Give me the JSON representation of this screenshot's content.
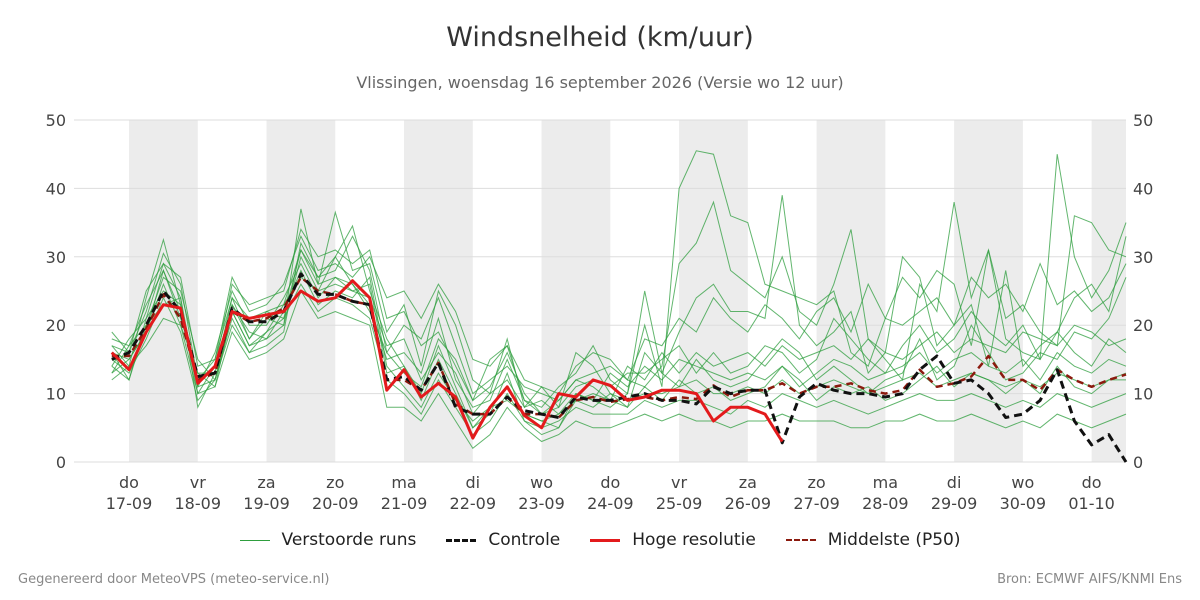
{
  "title": "Windsnelheid (km/uur)",
  "subtitle": "Vlissingen, woensdag 16 september 2026 (Versie wo 12 uur)",
  "footer_left": "Gegenereerd door MeteoVPS (meteo-service.nl)",
  "footer_right": "Bron: ECMWF AIFS/KNMI Ens",
  "colors": {
    "ensemble": "#2e9e3e",
    "control": "#111111",
    "high_res": "#e31a1c",
    "median": "#8b1a0e",
    "weekend_band": "#ececec",
    "grid": "#dddddd"
  },
  "legend": [
    {
      "label": "Verstoorde runs",
      "style": "ensemble"
    },
    {
      "label": "Controle",
      "style": "control"
    },
    {
      "label": "Hoge resolutie",
      "style": "high_res"
    },
    {
      "label": "Middelste (P50)",
      "style": "median"
    }
  ],
  "chart_data": {
    "type": "line",
    "title": "Windsnelheid (km/uur)",
    "ylim": [
      0,
      50
    ],
    "yticks": [
      0,
      10,
      20,
      30,
      40,
      50
    ],
    "x_unit": "days since 17-09 00:00",
    "xlim": [
      -0.8,
      14.5
    ],
    "grid": true,
    "legend_position": "bottom",
    "day_ticks": [
      {
        "x": 0,
        "day": "do",
        "date": "17-09"
      },
      {
        "x": 1,
        "day": "vr",
        "date": "18-09"
      },
      {
        "x": 2,
        "day": "za",
        "date": "19-09"
      },
      {
        "x": 3,
        "day": "zo",
        "date": "20-09"
      },
      {
        "x": 4,
        "day": "ma",
        "date": "21-09"
      },
      {
        "x": 5,
        "day": "di",
        "date": "22-09"
      },
      {
        "x": 6,
        "day": "wo",
        "date": "23-09"
      },
      {
        "x": 7,
        "day": "do",
        "date": "24-09"
      },
      {
        "x": 8,
        "day": "vr",
        "date": "25-09"
      },
      {
        "x": 9,
        "day": "za",
        "date": "26-09"
      },
      {
        "x": 10,
        "day": "zo",
        "date": "27-09"
      },
      {
        "x": 11,
        "day": "ma",
        "date": "28-09"
      },
      {
        "x": 12,
        "day": "di",
        "date": "29-09"
      },
      {
        "x": 13,
        "day": "wo",
        "date": "30-09"
      },
      {
        "x": 14,
        "day": "do",
        "date": "01-10"
      }
    ],
    "shaded_bands": [
      [
        0,
        1
      ],
      [
        2,
        3
      ],
      [
        4,
        5
      ],
      [
        6,
        7
      ],
      [
        8,
        9
      ],
      [
        10,
        11
      ],
      [
        12,
        13
      ],
      [
        14,
        14.5
      ]
    ],
    "series": [
      {
        "name": "Hoge resolutie",
        "style": "high_res",
        "x": [
          -0.25,
          -0.0,
          0.25,
          0.5,
          0.75,
          1.0,
          1.25,
          1.5,
          1.75,
          2.0,
          2.25,
          2.5,
          2.75,
          3.0,
          3.25,
          3.5,
          3.75,
          4.0,
          4.25,
          4.5,
          4.75,
          5.0,
          5.25,
          5.5,
          5.75,
          6.0,
          6.25,
          6.5,
          6.75,
          7.0,
          7.25,
          7.5,
          7.75,
          8.0,
          8.25,
          8.5,
          8.75,
          9.0,
          9.25,
          9.5
        ],
        "y": [
          16,
          13.5,
          19,
          23,
          22.5,
          11.5,
          14,
          22,
          21,
          21.5,
          22,
          25,
          23.5,
          24,
          26.5,
          24,
          10.5,
          13.5,
          9.5,
          11.5,
          9.5,
          3.5,
          8,
          11,
          6.8,
          5,
          10,
          9.5,
          12,
          11.2,
          9,
          9.5,
          10.5,
          10.5,
          10,
          6,
          8,
          8,
          7,
          3
        ]
      },
      {
        "name": "Controle",
        "style": "control",
        "x": [
          -0.25,
          -0.0,
          0.25,
          0.5,
          0.75,
          1.0,
          1.25,
          1.5,
          1.75,
          2.0,
          2.25,
          2.5,
          2.75,
          3.0,
          3.25,
          3.5,
          3.75,
          4.0,
          4.25,
          4.5,
          4.75,
          5.0,
          5.25,
          5.5,
          5.75,
          6.0,
          6.25,
          6.5,
          6.75,
          7.0,
          7.25,
          7.5,
          7.75,
          8.0,
          8.25,
          8.5,
          8.75,
          9.0,
          9.25,
          9.5,
          9.75,
          10.0,
          10.25,
          10.5,
          10.75,
          11.0,
          11.25,
          11.5,
          11.75,
          12.0,
          12.25,
          12.5,
          12.75,
          13.0,
          13.25,
          13.5,
          13.75,
          14.0,
          14.25,
          14.5
        ],
        "y": [
          15,
          16,
          20,
          25,
          22,
          12.5,
          13,
          22.5,
          20.5,
          20.5,
          22,
          27.5,
          24.5,
          24.5,
          23.5,
          23,
          12,
          12.5,
          10.5,
          14.5,
          8,
          7,
          7,
          9.5,
          7.5,
          7,
          6.5,
          9.5,
          9,
          9,
          9.5,
          10,
          9,
          9,
          8.5,
          11,
          10,
          10.5,
          10.5,
          2.8,
          9.5,
          11.5,
          10.5,
          10,
          10,
          9.5,
          10,
          13.5,
          15.5,
          11.5,
          12,
          10,
          6.5,
          7,
          9,
          13.5,
          6,
          2.5,
          4,
          0
        ]
      },
      {
        "name": "Middelste (P50)",
        "style": "median",
        "x": [
          -0.25,
          -0.0,
          0.25,
          0.5,
          0.75,
          1.0,
          1.25,
          1.5,
          1.75,
          2.0,
          2.25,
          2.5,
          2.75,
          3.0,
          3.25,
          3.5,
          3.75,
          4.0,
          4.25,
          4.5,
          4.75,
          5.0,
          5.25,
          5.5,
          5.75,
          6.0,
          6.25,
          6.5,
          6.75,
          7.0,
          7.25,
          7.5,
          7.75,
          8.0,
          8.25,
          8.5,
          8.75,
          9.0,
          9.25,
          9.5,
          9.75,
          10.0,
          10.25,
          10.5,
          10.75,
          11.0,
          11.25,
          11.5,
          11.75,
          12.0,
          12.25,
          12.5,
          12.75,
          13.0,
          13.25,
          13.5,
          13.75,
          14.0,
          14.25,
          14.5
        ],
        "y": [
          15.5,
          15.5,
          19.5,
          24.5,
          21,
          12,
          13,
          22,
          20.5,
          21,
          22.5,
          27,
          25,
          24.5,
          23.5,
          23,
          12,
          12,
          10.5,
          14.5,
          8.5,
          7,
          7,
          9.5,
          7,
          7,
          6.5,
          9,
          9.5,
          8.8,
          9.2,
          9.5,
          9,
          9.5,
          9.2,
          11.2,
          9.5,
          10.5,
          10.5,
          11.5,
          10,
          11,
          11,
          11.5,
          10.5,
          10,
          10.5,
          13.5,
          11,
          11.5,
          12.5,
          15.5,
          12,
          12,
          10.5,
          13.5,
          12,
          11,
          12,
          12.8
        ]
      }
    ],
    "ensemble_runs_x": [
      -0.25,
      -0.0,
      0.25,
      0.5,
      0.75,
      1.0,
      1.25,
      1.5,
      1.75,
      2.0,
      2.25,
      2.5,
      2.75,
      3.0,
      3.25,
      3.5,
      3.75,
      4.0,
      4.25,
      4.5,
      4.75,
      5.0,
      5.25,
      5.5,
      5.75,
      6.0,
      6.25,
      6.5,
      6.75,
      7.0,
      7.25,
      7.5,
      7.75,
      8.0,
      8.25,
      8.5,
      8.75,
      9.0,
      9.25,
      9.5,
      9.75,
      10.0,
      10.25,
      10.5,
      10.75,
      11.0,
      11.25,
      11.5,
      11.75,
      12.0,
      12.25,
      12.5,
      12.75,
      13.0,
      13.25,
      13.5,
      13.75,
      14.0,
      14.25,
      14.5
    ],
    "ensemble_runs": [
      {
        "name": "Verstoorde runs",
        "y": [
          19,
          16,
          22,
          30.5,
          26,
          12,
          15,
          24,
          21,
          22,
          23,
          31,
          27,
          28,
          33,
          28,
          16,
          20,
          18,
          24,
          17,
          10,
          12,
          14,
          11,
          10,
          9,
          12,
          13,
          14,
          12,
          11,
          14,
          29,
          32,
          38,
          28,
          26,
          24,
          30,
          22,
          20,
          26,
          34,
          18,
          15,
          12,
          26,
          22,
          38,
          24,
          31,
          18,
          16,
          15,
          45,
          30,
          24,
          28,
          35
        ]
      },
      {
        "name": "Verstoorde runs",
        "y": [
          17,
          14,
          24,
          32.5,
          23,
          10,
          14,
          26,
          23,
          24,
          25,
          34,
          30,
          31,
          29,
          31,
          21,
          22,
          17,
          19,
          14,
          9,
          15,
          17,
          9,
          8,
          11,
          13,
          17,
          12,
          10,
          20,
          11,
          40,
          45.5,
          45,
          36,
          35,
          26,
          25,
          24,
          23,
          25,
          16,
          14,
          21,
          27,
          24,
          28,
          26,
          17,
          31,
          21,
          23,
          19,
          17,
          36,
          35,
          31,
          30
        ]
      },
      {
        "name": "Verstoorde runs",
        "y": [
          14,
          18,
          21,
          29,
          24,
          8,
          13,
          23,
          18,
          21,
          20,
          37,
          26,
          36.5,
          28,
          29,
          19,
          23,
          14,
          25,
          20,
          12,
          10,
          18,
          8,
          11,
          8,
          16,
          14,
          10,
          8,
          16,
          13,
          19,
          24,
          26,
          22,
          22,
          21,
          39,
          20,
          17,
          19,
          22,
          13,
          16,
          30,
          27,
          17,
          20,
          23,
          14,
          28,
          14,
          17,
          19,
          24,
          26,
          22,
          33
        ]
      },
      {
        "name": "Verstoorde runs",
        "y": [
          16,
          12,
          20,
          27,
          25,
          15,
          12,
          20,
          16,
          17,
          19,
          32,
          27,
          30,
          34.5,
          25,
          18,
          14,
          10,
          17,
          11,
          5,
          7,
          13,
          6,
          4,
          5,
          10,
          9,
          8,
          10,
          25,
          13,
          11,
          15,
          12,
          11,
          12,
          15,
          18,
          16,
          12,
          14,
          12,
          10,
          12,
          13,
          18,
          12,
          14,
          20,
          16,
          12,
          13,
          16,
          15,
          19,
          18,
          21,
          27
        ]
      },
      {
        "name": "Verstoorde runs",
        "y": [
          13,
          15,
          19,
          26,
          20,
          13,
          11,
          22,
          17,
          18,
          22,
          28,
          23,
          25,
          24,
          27,
          14,
          11,
          8,
          13,
          9,
          6,
          8,
          11,
          7,
          6,
          7,
          9,
          10,
          9,
          8,
          11,
          9,
          12,
          10,
          11,
          9,
          10,
          11,
          14,
          12,
          9,
          11,
          10,
          11,
          9,
          10,
          12,
          14,
          11,
          13,
          12,
          10,
          12,
          10,
          14,
          11,
          10,
          12,
          13
        ]
      },
      {
        "name": "Verstoorde runs",
        "y": [
          18,
          17,
          23,
          28,
          22,
          11,
          16,
          25,
          20,
          20,
          24,
          29,
          24,
          27,
          26,
          23,
          15,
          16,
          13,
          21,
          12,
          8,
          9,
          15,
          9,
          7,
          8,
          11,
          12,
          11,
          13,
          13,
          15,
          17,
          13,
          16,
          13,
          14,
          17,
          16,
          13,
          15,
          21,
          18,
          15,
          13,
          17,
          20,
          16,
          18,
          22,
          19,
          17,
          20,
          15,
          19,
          16,
          14,
          18,
          16
        ]
      },
      {
        "name": "Verstoorde runs",
        "y": [
          15,
          13,
          18,
          24,
          19,
          9,
          12,
          21,
          16,
          19,
          21,
          26,
          22,
          24,
          23,
          21,
          12,
          10,
          7,
          12,
          8,
          4,
          6,
          10,
          6,
          5,
          6,
          8,
          7,
          7,
          7,
          9,
          8,
          9,
          9,
          8,
          7,
          9,
          8,
          10,
          9,
          8,
          9,
          8,
          7,
          8,
          9,
          10,
          9,
          9,
          10,
          9,
          8,
          9,
          8,
          10,
          9,
          8,
          9,
          10
        ]
      },
      {
        "name": "Verstoorde runs",
        "y": [
          12,
          14,
          17,
          21,
          20,
          10,
          11,
          19,
          15,
          16,
          18,
          25,
          21,
          22,
          21,
          20,
          8,
          8,
          6,
          10,
          6,
          2,
          4,
          8,
          5,
          3,
          4,
          6,
          5,
          5,
          6,
          7,
          6,
          7,
          6,
          6,
          5,
          6,
          6,
          7,
          6,
          6,
          6,
          5,
          5,
          6,
          6,
          7,
          6,
          6,
          7,
          6,
          5,
          6,
          5,
          7,
          6,
          5,
          6,
          7
        ]
      },
      {
        "name": "Verstoorde runs",
        "y": [
          17,
          16,
          25,
          29,
          27,
          14,
          15,
          27,
          22,
          23,
          26,
          33,
          28,
          29,
          27,
          30,
          24,
          25,
          21,
          26,
          22,
          15,
          14,
          17,
          12,
          11,
          10,
          14,
          16,
          15,
          12,
          18,
          17,
          21,
          19,
          24,
          21,
          19,
          23,
          21,
          18,
          22,
          24,
          19,
          26,
          21,
          20,
          22,
          24,
          20,
          27,
          24,
          26,
          22,
          29,
          23,
          25,
          22,
          24,
          29
        ]
      },
      {
        "name": "Verstoorde runs",
        "y": [
          14,
          12,
          21,
          25,
          23,
          12,
          14,
          23,
          19,
          18,
          20,
          30,
          25,
          26,
          25,
          24,
          17,
          18,
          12,
          16,
          13,
          7,
          10,
          12,
          8,
          9,
          7,
          10,
          9,
          13,
          11,
          14,
          12,
          15,
          14,
          13,
          12,
          13,
          12,
          14,
          11,
          13,
          15,
          14,
          12,
          13,
          14,
          16,
          13,
          15,
          16,
          14,
          13,
          15,
          12,
          16,
          14,
          13,
          15,
          14
        ]
      },
      {
        "name": "Verstoorde runs",
        "y": [
          16,
          15,
          19,
          28,
          21,
          13,
          13,
          24,
          18,
          22,
          21,
          31,
          26,
          27,
          25,
          26,
          13,
          14,
          9,
          15,
          10,
          5,
          8,
          9,
          7,
          6,
          5,
          9,
          8,
          10,
          9,
          10,
          10,
          11,
          12,
          10,
          10,
          11,
          10,
          12,
          10,
          11,
          12,
          11,
          10,
          11,
          12,
          13,
          11,
          12,
          13,
          12,
          11,
          12,
          11,
          13,
          12,
          11,
          12,
          12
        ]
      },
      {
        "name": "Verstoorde runs",
        "y": [
          13,
          17,
          20,
          23,
          24,
          11,
          12,
          22,
          17,
          19,
          23,
          27,
          25,
          30,
          26,
          22,
          16,
          13,
          11,
          18,
          15,
          9,
          11,
          16,
          10,
          7,
          9,
          12,
          11,
          9,
          14,
          12,
          16,
          13,
          16,
          14,
          15,
          16,
          14,
          17,
          15,
          16,
          17,
          15,
          18,
          16,
          15,
          17,
          19,
          16,
          18,
          17,
          16,
          19,
          18,
          17,
          20,
          19,
          17,
          18
        ]
      }
    ]
  }
}
